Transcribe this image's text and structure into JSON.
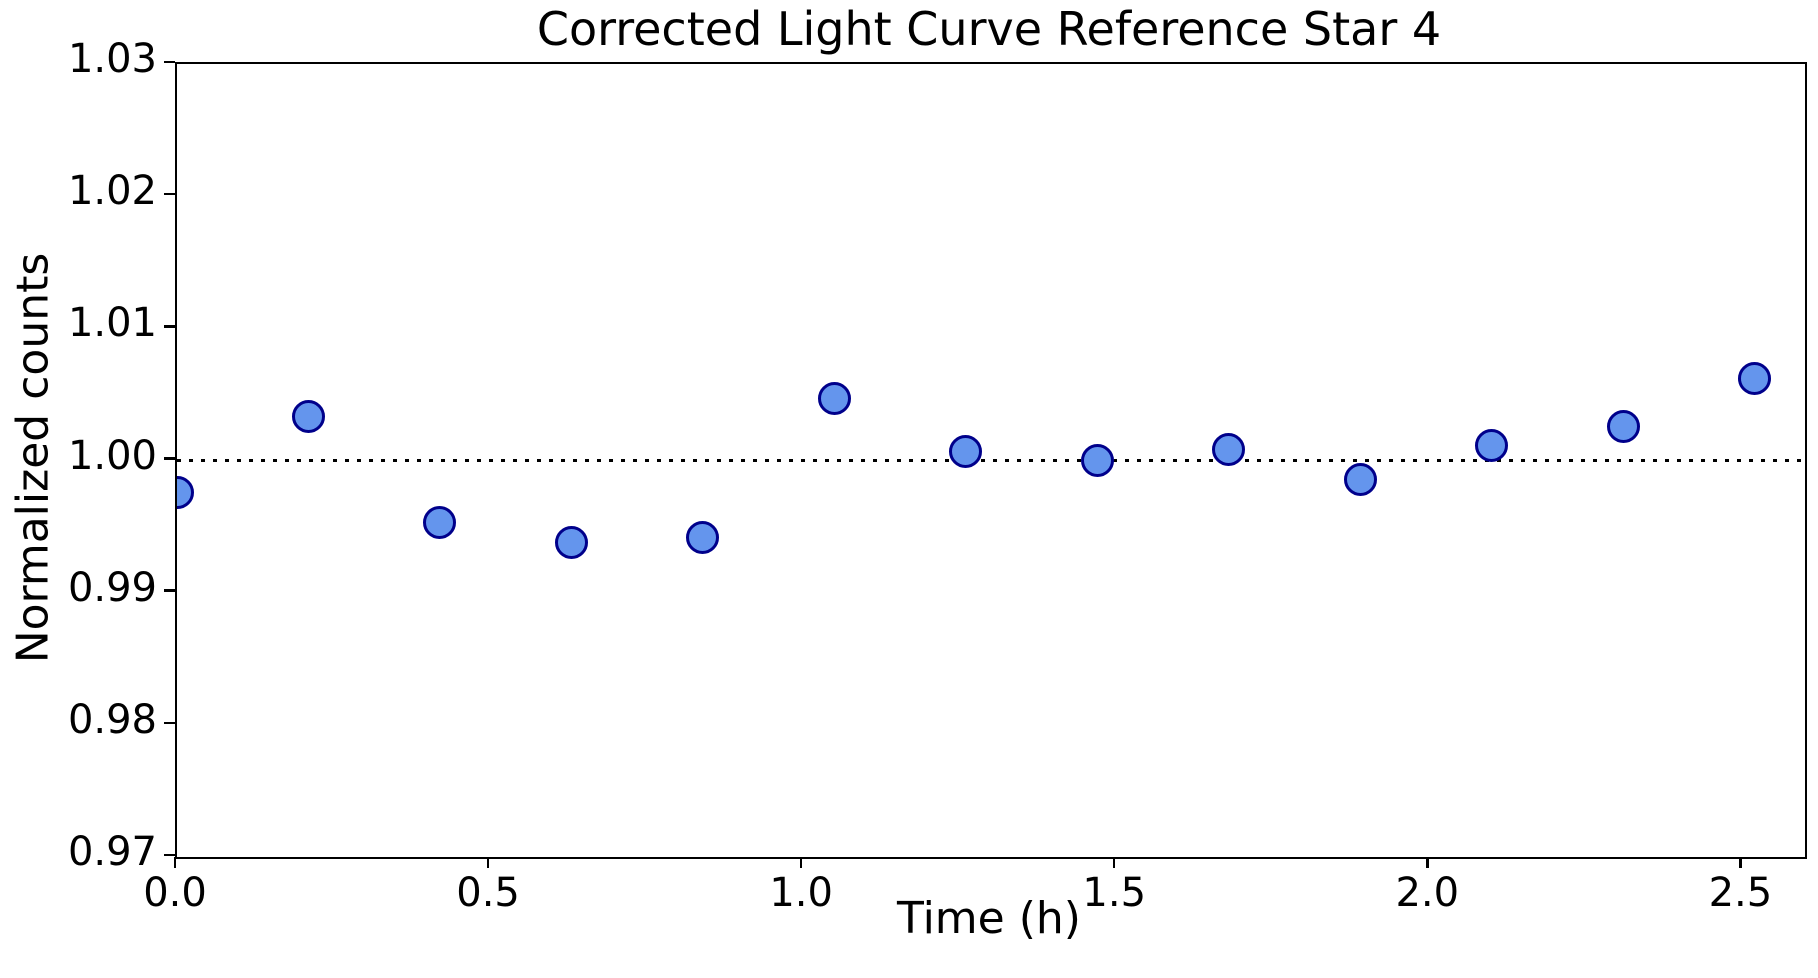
{
  "chart_data": {
    "type": "scatter",
    "title": "Corrected Light Curve Reference Star 4",
    "xlabel": "Time (h)",
    "ylabel": "Normalized counts",
    "xlim": [
      0.0,
      2.6
    ],
    "ylim": [
      0.97,
      1.03
    ],
    "x_tick_labels": [
      "0.0",
      "0.5",
      "1.0",
      "1.5",
      "2.0",
      "2.5"
    ],
    "y_tick_labels": [
      "0.97",
      "0.98",
      "0.99",
      "1.00",
      "1.01",
      "1.02",
      "1.03"
    ],
    "grid": false,
    "legend": "none",
    "reference_line": {
      "y": 1.0,
      "style": "dotted",
      "color": "#000000"
    },
    "marker": {
      "shape": "circle",
      "fill": "#6495ED",
      "edge": "#00008B"
    },
    "x": [
      0.0,
      0.21,
      0.42,
      0.63,
      0.84,
      1.05,
      1.26,
      1.47,
      1.68,
      1.89,
      2.1,
      2.31,
      2.52
    ],
    "y": [
      0.9976,
      1.0033,
      0.9953,
      0.9938,
      0.9942,
      1.0047,
      1.0007,
      1.0,
      1.0008,
      0.9986,
      1.0011,
      1.0026,
      1.0062
    ]
  }
}
